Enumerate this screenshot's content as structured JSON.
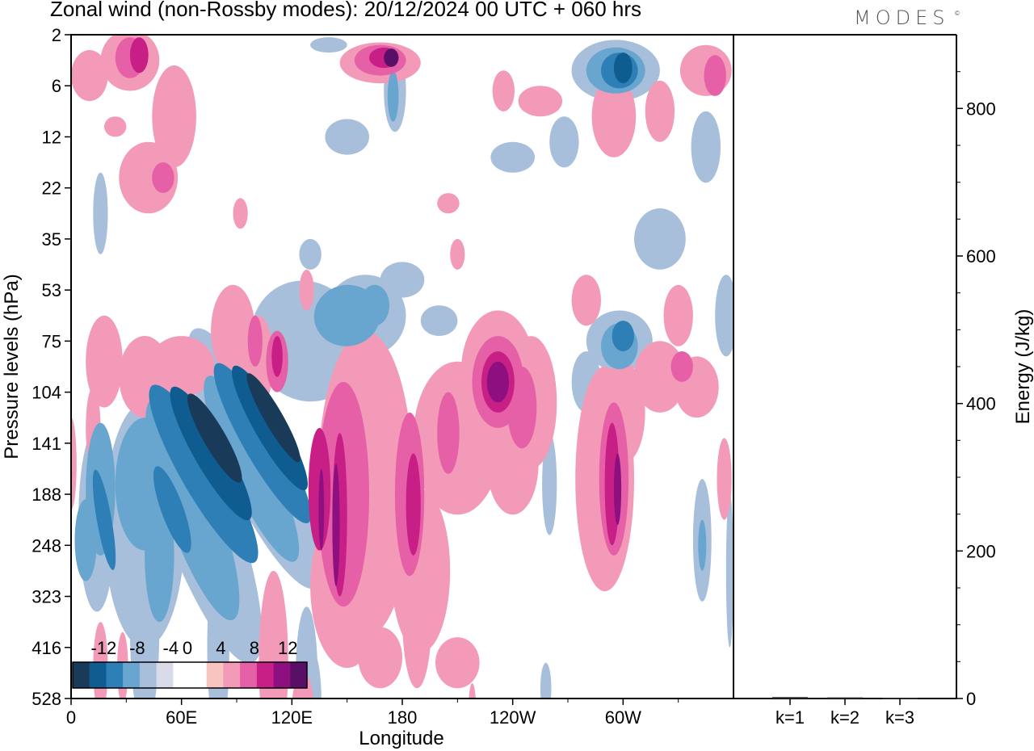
{
  "header": {
    "title": "Zonal wind (non-Rossby modes):  20/12/2024  00 UTC  + 060 hrs",
    "logo": "MODES",
    "logo_mark": "©"
  },
  "chart_data": [
    {
      "type": "heatmap",
      "title": "Zonal wind (non-Rossby modes):  20/12/2024  00 UTC  + 060 hrs",
      "xlabel": "Longitude",
      "ylabel": "Pressure levels (hPa)",
      "x_ticks": [
        "0",
        "60E",
        "120E",
        "180",
        "120W",
        "60W"
      ],
      "y_ticks": [
        "2",
        "6",
        "12",
        "22",
        "35",
        "53",
        "75",
        "104",
        "141",
        "188",
        "248",
        "323",
        "416",
        "528"
      ],
      "colorbar": {
        "labels": [
          "-12",
          "-8",
          "-4",
          "0",
          "4",
          "8",
          "12"
        ],
        "colors": [
          "#1a3a5a",
          "#0e5c90",
          "#2e7fb6",
          "#68a5cf",
          "#a7bfdb",
          "#d9dbe9",
          "#ffffff",
          "#ffffff",
          "#f8c4c0",
          "#f29ab8",
          "#e560a6",
          "#c81f87",
          "#8e1080",
          "#5a0f66"
        ]
      },
      "features": [
        {
          "lon": 75,
          "level": "141",
          "value": -14
        },
        {
          "lon": 110,
          "level": "104",
          "value": -13
        },
        {
          "lon": 145,
          "level": "188",
          "value": 9
        },
        {
          "lon": 232,
          "level": "75",
          "value": 9
        },
        {
          "lon": 168,
          "level": "2",
          "value": 10
        },
        {
          "lon": 296,
          "level": "6",
          "value": -10
        },
        {
          "lon": 32,
          "level": "2",
          "value": 8
        },
        {
          "lon": 300,
          "level": "75",
          "value": -7
        },
        {
          "lon": 295,
          "level": "141",
          "value": 7
        }
      ]
    },
    {
      "type": "bar",
      "ylabel": "Energy (J/kg)",
      "categories": [
        "k=1",
        "k=2",
        "k=3"
      ],
      "values": [
        2,
        1.5,
        0.8
      ],
      "ylim": [
        0,
        900
      ],
      "y_ticks": [
        "0",
        "200",
        "400",
        "600",
        "800"
      ]
    }
  ]
}
